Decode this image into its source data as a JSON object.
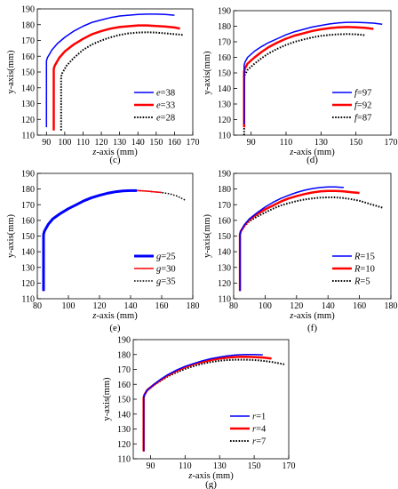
{
  "chart_data": [
    {
      "type": "line",
      "panel_label": "(c)",
      "xlabel_var": "z",
      "xlabel_rest": "-axis (mm)",
      "ylabel": "y-axis(mm)",
      "xlim": [
        85,
        170
      ],
      "ylim": [
        110,
        190
      ],
      "xticks": [
        90,
        100,
        110,
        120,
        130,
        140,
        150,
        160,
        170
      ],
      "yticks": [
        110,
        120,
        130,
        140,
        150,
        160,
        170,
        180,
        190
      ],
      "legend_position": "bottom-right",
      "series": [
        {
          "name": "e=38",
          "var": "e",
          "val": "=38",
          "color": "#0000ff",
          "dash": false,
          "width": 1.5,
          "x": [
            90,
            90,
            90.5,
            93,
            96,
            100,
            105,
            110,
            115,
            120,
            125,
            130,
            135,
            140,
            145,
            150,
            155,
            160
          ],
          "y": [
            115,
            157,
            159,
            164,
            168,
            172,
            176,
            179,
            181.5,
            183,
            184.5,
            185.5,
            186,
            186.5,
            186.7,
            186.7,
            186.5,
            186
          ]
        },
        {
          "name": "e=33",
          "var": "e",
          "val": "=33",
          "color": "#ff0000",
          "dash": false,
          "width": 2.5,
          "x": [
            94,
            94,
            94.5,
            97,
            100,
            105,
            110,
            115,
            120,
            125,
            130,
            135,
            140,
            145,
            150,
            155,
            160,
            163
          ],
          "y": [
            113,
            152,
            154,
            159,
            163,
            167.5,
            171,
            174,
            176,
            177.5,
            178.5,
            179,
            179.5,
            179.5,
            179.2,
            178.8,
            178.2,
            177.5
          ]
        },
        {
          "name": "e=28",
          "var": "e",
          "val": "=28",
          "color": "#000000",
          "dash": true,
          "width": 2,
          "x": [
            98,
            98,
            98.5,
            101,
            105,
            110,
            115,
            120,
            125,
            130,
            135,
            140,
            145,
            150,
            155,
            160,
            165
          ],
          "y": [
            113,
            147,
            149,
            154,
            159,
            164,
            167.5,
            170,
            172,
            173.5,
            174.5,
            175,
            175.2,
            175,
            174.5,
            174,
            173.5
          ]
        }
      ]
    },
    {
      "type": "line",
      "panel_label": "(d)",
      "xlabel_var": "z",
      "xlabel_rest": "-axis (mm)",
      "ylabel": "y-axis(mm)",
      "xlim": [
        80,
        170
      ],
      "ylim": [
        110,
        190
      ],
      "xticks": [
        90,
        110,
        130,
        150,
        170
      ],
      "yticks": [
        110,
        120,
        130,
        140,
        150,
        160,
        170,
        180,
        190
      ],
      "legend_position": "bottom-right",
      "series": [
        {
          "name": "f=97",
          "var": "f",
          "val": "=97",
          "color": "#0000ff",
          "dash": false,
          "width": 1.5,
          "x": [
            86,
            86,
            86.5,
            88,
            92,
            96,
            100,
            105,
            110,
            115,
            120,
            125,
            130,
            135,
            140,
            145,
            150,
            155,
            160,
            165
          ],
          "y": [
            117,
            155,
            157,
            160,
            164,
            167,
            169.5,
            172,
            174.5,
            176.5,
            178,
            179.5,
            180.5,
            181.5,
            182.2,
            182.5,
            182.5,
            182.3,
            182,
            181.3
          ]
        },
        {
          "name": "f=92",
          "var": "f",
          "val": "=92",
          "color": "#ff0000",
          "dash": false,
          "width": 2.5,
          "x": [
            86,
            86,
            86.5,
            88,
            92,
            96,
            100,
            105,
            110,
            115,
            120,
            125,
            130,
            135,
            140,
            145,
            150,
            155,
            160
          ],
          "y": [
            115,
            151,
            153,
            156,
            160,
            163.5,
            166.5,
            169.5,
            172,
            174,
            175.5,
            177,
            178,
            178.8,
            179.3,
            179.5,
            179.3,
            179,
            178.3
          ]
        },
        {
          "name": "f=87",
          "var": "f",
          "val": "=87",
          "color": "#000000",
          "dash": true,
          "width": 2,
          "x": [
            86,
            86,
            86.5,
            88,
            92,
            96,
            100,
            105,
            110,
            115,
            120,
            125,
            130,
            135,
            140,
            145,
            150,
            155
          ],
          "y": [
            110,
            147,
            149,
            152,
            156,
            159.5,
            162.5,
            165.5,
            168,
            170,
            171.5,
            172.8,
            173.8,
            174.4,
            174.8,
            175,
            174.8,
            174.3
          ]
        }
      ]
    },
    {
      "type": "line",
      "panel_label": "(e)",
      "xlabel_var": "z",
      "xlabel_rest": "-axis (mm)",
      "ylabel": "y-axis(mm)",
      "xlim": [
        80,
        180
      ],
      "ylim": [
        110,
        190
      ],
      "xticks": [
        80,
        100,
        120,
        140,
        160,
        180
      ],
      "yticks": [
        110,
        120,
        130,
        140,
        150,
        160,
        170,
        180,
        190
      ],
      "legend_position": "bottom-right",
      "series": [
        {
          "name": "g=25",
          "var": "g",
          "val": "=25",
          "color": "#0000ff",
          "dash": false,
          "width": 3,
          "x": [
            84,
            84,
            84.5,
            87,
            90,
            95,
            100,
            105,
            110,
            115,
            120,
            125,
            130,
            135,
            140,
            144
          ],
          "y": [
            115,
            151,
            153,
            157.5,
            161,
            164.5,
            167.5,
            170,
            172.5,
            174.5,
            176,
            177.3,
            178.2,
            178.8,
            179,
            179
          ]
        },
        {
          "name": "g=30",
          "var": "g",
          "val": "=30",
          "color": "#ff0000",
          "dash": false,
          "width": 1.5,
          "x": [
            84,
            84,
            84.5,
            87,
            90,
            95,
            100,
            105,
            110,
            115,
            120,
            125,
            130,
            135,
            140,
            145,
            150,
            155,
            160
          ],
          "y": [
            115,
            151,
            153,
            157.5,
            161,
            164.5,
            167.5,
            170,
            172.5,
            174.5,
            176,
            177.3,
            178.2,
            178.8,
            179,
            179,
            178.7,
            178.2,
            177.8
          ]
        },
        {
          "name": "g=35",
          "var": "g",
          "val": "=35",
          "color": "#000000",
          "dash": true,
          "width": 1.5,
          "x": [
            84,
            84,
            84.5,
            87,
            90,
            95,
            100,
            105,
            110,
            115,
            120,
            125,
            130,
            135,
            140,
            145,
            150,
            155,
            160,
            165,
            170,
            175
          ],
          "y": [
            115,
            151,
            153,
            157.5,
            161,
            164.5,
            167.5,
            170,
            172.5,
            174.5,
            176,
            177.3,
            178.2,
            178.8,
            179,
            179,
            178.7,
            178.2,
            177.8,
            177,
            175.5,
            173
          ]
        }
      ]
    },
    {
      "type": "line",
      "panel_label": "(f)",
      "xlabel_var": "z",
      "xlabel_rest": "-axis (mm)",
      "ylabel": "y-axis(mm)",
      "xlim": [
        80,
        180
      ],
      "ylim": [
        110,
        190
      ],
      "xticks": [
        80,
        100,
        120,
        140,
        160,
        180
      ],
      "yticks": [
        110,
        120,
        130,
        140,
        150,
        160,
        170,
        180,
        190
      ],
      "legend_position": "bottom-right",
      "series": [
        {
          "name": "R=15",
          "var": "R",
          "val": "=15",
          "color": "#0000ff",
          "dash": false,
          "width": 1.5,
          "x": [
            84,
            84,
            84.5,
            87,
            90,
            95,
            100,
            105,
            110,
            115,
            120,
            125,
            130,
            135,
            140,
            145,
            150
          ],
          "y": [
            115,
            151,
            153,
            157.5,
            161,
            165,
            168.5,
            171.5,
            174,
            176,
            177.8,
            179.2,
            180.3,
            181,
            181.3,
            181.3,
            181
          ]
        },
        {
          "name": "R=10",
          "var": "R",
          "val": "=10",
          "color": "#ff0000",
          "dash": false,
          "width": 2.5,
          "x": [
            84,
            84,
            84.5,
            87,
            90,
            95,
            100,
            105,
            110,
            115,
            120,
            125,
            130,
            135,
            140,
            145,
            150,
            155,
            160
          ],
          "y": [
            115,
            151,
            153,
            157,
            160.5,
            164,
            167,
            169.5,
            172,
            174,
            175.5,
            176.8,
            177.8,
            178.5,
            178.8,
            178.8,
            178.5,
            178,
            177.5
          ]
        },
        {
          "name": "R=5",
          "var": "R",
          "val": "=5",
          "color": "#000000",
          "dash": true,
          "width": 2,
          "x": [
            84,
            84,
            84.5,
            87,
            90,
            95,
            100,
            105,
            110,
            115,
            120,
            125,
            130,
            135,
            140,
            145,
            150,
            155,
            160,
            165,
            170,
            175
          ],
          "y": [
            115,
            151,
            153,
            156.5,
            159.5,
            162.5,
            165,
            167.5,
            169.5,
            171,
            172.3,
            173.3,
            174,
            174.5,
            174.7,
            174.7,
            174.3,
            173.5,
            172.5,
            171,
            169.5,
            168
          ]
        }
      ]
    },
    {
      "type": "line",
      "panel_label": "(g)",
      "xlabel_var": "z",
      "xlabel_rest": "-axis (mm)",
      "ylabel": "y-axis(mm)",
      "xlim": [
        80,
        170
      ],
      "ylim": [
        110,
        190
      ],
      "xticks": [
        90,
        110,
        130,
        150,
        170
      ],
      "yticks": [
        110,
        120,
        130,
        140,
        150,
        160,
        170,
        180,
        190
      ],
      "legend_position": "bottom-right",
      "series": [
        {
          "name": "r=1",
          "var": "r",
          "val": "=1",
          "color": "#0000ff",
          "dash": false,
          "width": 1.5,
          "x": [
            86,
            86,
            86.5,
            88,
            92,
            96,
            100,
            105,
            110,
            115,
            120,
            125,
            130,
            135,
            140,
            145,
            150,
            155
          ],
          "y": [
            115,
            151,
            153,
            156,
            160,
            163.5,
            166.5,
            169.5,
            172,
            174,
            175.8,
            177.2,
            178.3,
            179.2,
            179.8,
            180,
            180,
            179.8
          ]
        },
        {
          "name": "r=4",
          "var": "r",
          "val": "=4",
          "color": "#ff0000",
          "dash": false,
          "width": 2.5,
          "x": [
            86,
            86,
            86.5,
            88,
            92,
            96,
            100,
            105,
            110,
            115,
            120,
            125,
            130,
            135,
            140,
            145,
            150,
            155,
            160
          ],
          "y": [
            115,
            151,
            153,
            156,
            159.8,
            163,
            166,
            169,
            171.5,
            173.5,
            175,
            176.3,
            177.3,
            178,
            178.4,
            178.5,
            178.3,
            178,
            177.3
          ]
        },
        {
          "name": "r=7",
          "var": "r",
          "val": "=7",
          "color": "#000000",
          "dash": true,
          "width": 2,
          "x": [
            86,
            86,
            86.5,
            88,
            92,
            96,
            100,
            105,
            110,
            115,
            120,
            125,
            130,
            135,
            140,
            145,
            150,
            155,
            160,
            165,
            168
          ],
          "y": [
            115,
            151,
            153,
            155.8,
            159.5,
            162.5,
            165.3,
            168,
            170.3,
            172.2,
            173.8,
            175,
            175.8,
            176.3,
            176.5,
            176.5,
            176.3,
            175.8,
            175,
            174,
            173.3
          ]
        }
      ]
    }
  ]
}
